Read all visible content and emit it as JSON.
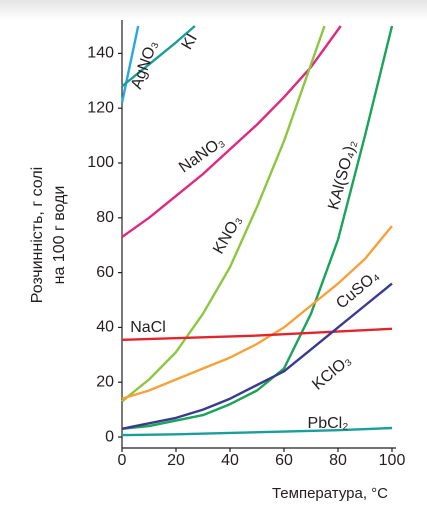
{
  "chart_data": {
    "type": "line",
    "y_label": [
      "Розчинність, г солі",
      "на 100 г води"
    ],
    "x_label": "Температура, °С",
    "xlim": [
      0,
      100
    ],
    "xticks": [
      0,
      20,
      40,
      60,
      80,
      100
    ],
    "ylim": [
      -4,
      150
    ],
    "yticks": [
      0,
      20,
      40,
      60,
      80,
      100,
      120,
      140
    ],
    "series": [
      {
        "name": "AgNO₃",
        "color": "#29a8e0",
        "x": [
          0,
          3,
          6
        ],
        "values": [
          122,
          136,
          150
        ]
      },
      {
        "name": "KI",
        "color": "#1a9e9a",
        "x": [
          0,
          10,
          20,
          27
        ],
        "values": [
          128,
          136,
          144,
          150
        ]
      },
      {
        "name": "NaNO₃",
        "color": "#e0287f",
        "x": [
          0,
          10,
          20,
          30,
          40,
          50,
          60,
          70,
          81
        ],
        "values": [
          73,
          80,
          88,
          96,
          105,
          114,
          124,
          135,
          150
        ]
      },
      {
        "name": "KNO₃",
        "color": "#8dc63f",
        "x": [
          0,
          10,
          20,
          30,
          40,
          50,
          60,
          70,
          75
        ],
        "values": [
          13,
          21,
          31,
          45,
          62,
          84,
          108,
          136,
          150
        ]
      },
      {
        "name": "KAl(SO₄)₂",
        "color": "#1aa35a",
        "x": [
          0,
          10,
          20,
          30,
          40,
          50,
          60,
          70,
          80,
          90,
          100
        ],
        "values": [
          3,
          4,
          6,
          8,
          12,
          17,
          25,
          45,
          72,
          110,
          150
        ]
      },
      {
        "name": "CuSO₄",
        "color": "#f7a13a",
        "x": [
          0,
          10,
          20,
          30,
          40,
          50,
          60,
          70,
          80,
          90,
          100
        ],
        "values": [
          14,
          17,
          21,
          25,
          29,
          34,
          40,
          48,
          56,
          65,
          77
        ]
      },
      {
        "name": "NaCl",
        "color": "#e0262b",
        "x": [
          0,
          50,
          100
        ],
        "values": [
          35.5,
          37,
          39.5
        ]
      },
      {
        "name": "KClO₃",
        "color": "#3a3a8f",
        "x": [
          0,
          10,
          20,
          30,
          40,
          50,
          60,
          70,
          80,
          90,
          100
        ],
        "values": [
          3,
          5,
          7,
          10,
          14,
          19,
          24,
          32,
          40,
          48,
          56
        ]
      },
      {
        "name": "PbCl₂",
        "color": "#1a9e9a",
        "x": [
          0,
          20,
          40,
          60,
          80,
          100
        ],
        "values": [
          0.7,
          1,
          1.5,
          2,
          2.5,
          3.3
        ]
      }
    ]
  }
}
